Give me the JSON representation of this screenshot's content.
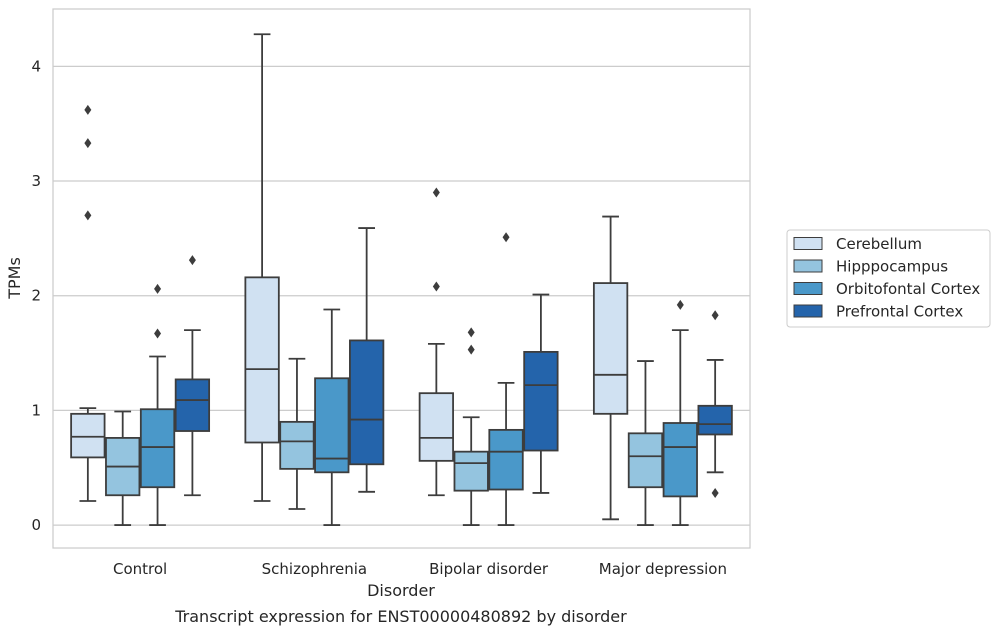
{
  "chart_data": {
    "type": "box",
    "xlabel": "Disorder",
    "ylabel": "TPMs",
    "caption": "Transcript expression for ENST00000480892 by disorder",
    "ylim": [
      -0.2,
      4.5
    ],
    "yticks": [
      0,
      1,
      2,
      3,
      4
    ],
    "grid": true,
    "legend_position": "right",
    "categories": [
      "Control",
      "Schizophrenia",
      "Bipolar disorder",
      "Major depression"
    ],
    "series": [
      {
        "name": "Cerebellum",
        "color": "#d0e1f2",
        "boxes": [
          {
            "whislo": 0.21,
            "q1": 0.59,
            "med": 0.77,
            "q3": 0.97,
            "whishi": 1.02,
            "fliers": [
              2.7,
              3.33,
              3.62
            ]
          },
          {
            "whislo": 0.21,
            "q1": 0.72,
            "med": 1.36,
            "q3": 2.16,
            "whishi": 4.28,
            "fliers": []
          },
          {
            "whislo": 0.26,
            "q1": 0.56,
            "med": 0.76,
            "q3": 1.15,
            "whishi": 1.58,
            "fliers": [
              2.08,
              2.9
            ]
          },
          {
            "whislo": 0.05,
            "q1": 0.97,
            "med": 1.31,
            "q3": 2.11,
            "whishi": 2.69,
            "fliers": []
          }
        ]
      },
      {
        "name": "Hipppocampus",
        "color": "#94c4df",
        "boxes": [
          {
            "whislo": 0.0,
            "q1": 0.26,
            "med": 0.51,
            "q3": 0.76,
            "whishi": 0.99,
            "fliers": []
          },
          {
            "whislo": 0.14,
            "q1": 0.49,
            "med": 0.73,
            "q3": 0.9,
            "whishi": 1.45,
            "fliers": []
          },
          {
            "whislo": 0.0,
            "q1": 0.3,
            "med": 0.54,
            "q3": 0.64,
            "whishi": 0.94,
            "fliers": [
              1.53,
              1.68
            ]
          },
          {
            "whislo": 0.0,
            "q1": 0.33,
            "med": 0.6,
            "q3": 0.8,
            "whishi": 1.43,
            "fliers": []
          }
        ]
      },
      {
        "name": "Orbitofontal Cortex",
        "color": "#4a98c9",
        "boxes": [
          {
            "whislo": 0.0,
            "q1": 0.33,
            "med": 0.68,
            "q3": 1.01,
            "whishi": 1.47,
            "fliers": [
              1.67,
              2.06
            ]
          },
          {
            "whislo": 0.0,
            "q1": 0.46,
            "med": 0.58,
            "q3": 1.28,
            "whishi": 1.88,
            "fliers": []
          },
          {
            "whislo": 0.0,
            "q1": 0.31,
            "med": 0.64,
            "q3": 0.83,
            "whishi": 1.24,
            "fliers": [
              2.51
            ]
          },
          {
            "whislo": 0.0,
            "q1": 0.25,
            "med": 0.68,
            "q3": 0.89,
            "whishi": 1.7,
            "fliers": [
              1.92
            ]
          }
        ]
      },
      {
        "name": "Prefrontal Cortex",
        "color": "#2464ab",
        "boxes": [
          {
            "whislo": 0.26,
            "q1": 0.82,
            "med": 1.09,
            "q3": 1.27,
            "whishi": 1.7,
            "fliers": [
              2.31
            ]
          },
          {
            "whislo": 0.29,
            "q1": 0.53,
            "med": 0.92,
            "q3": 1.61,
            "whishi": 2.59,
            "fliers": []
          },
          {
            "whislo": 0.28,
            "q1": 0.65,
            "med": 1.22,
            "q3": 1.51,
            "whishi": 2.01,
            "fliers": []
          },
          {
            "whislo": 0.46,
            "q1": 0.79,
            "med": 0.88,
            "q3": 1.04,
            "whishi": 1.44,
            "fliers": [
              0.28,
              1.83
            ]
          }
        ]
      }
    ]
  }
}
